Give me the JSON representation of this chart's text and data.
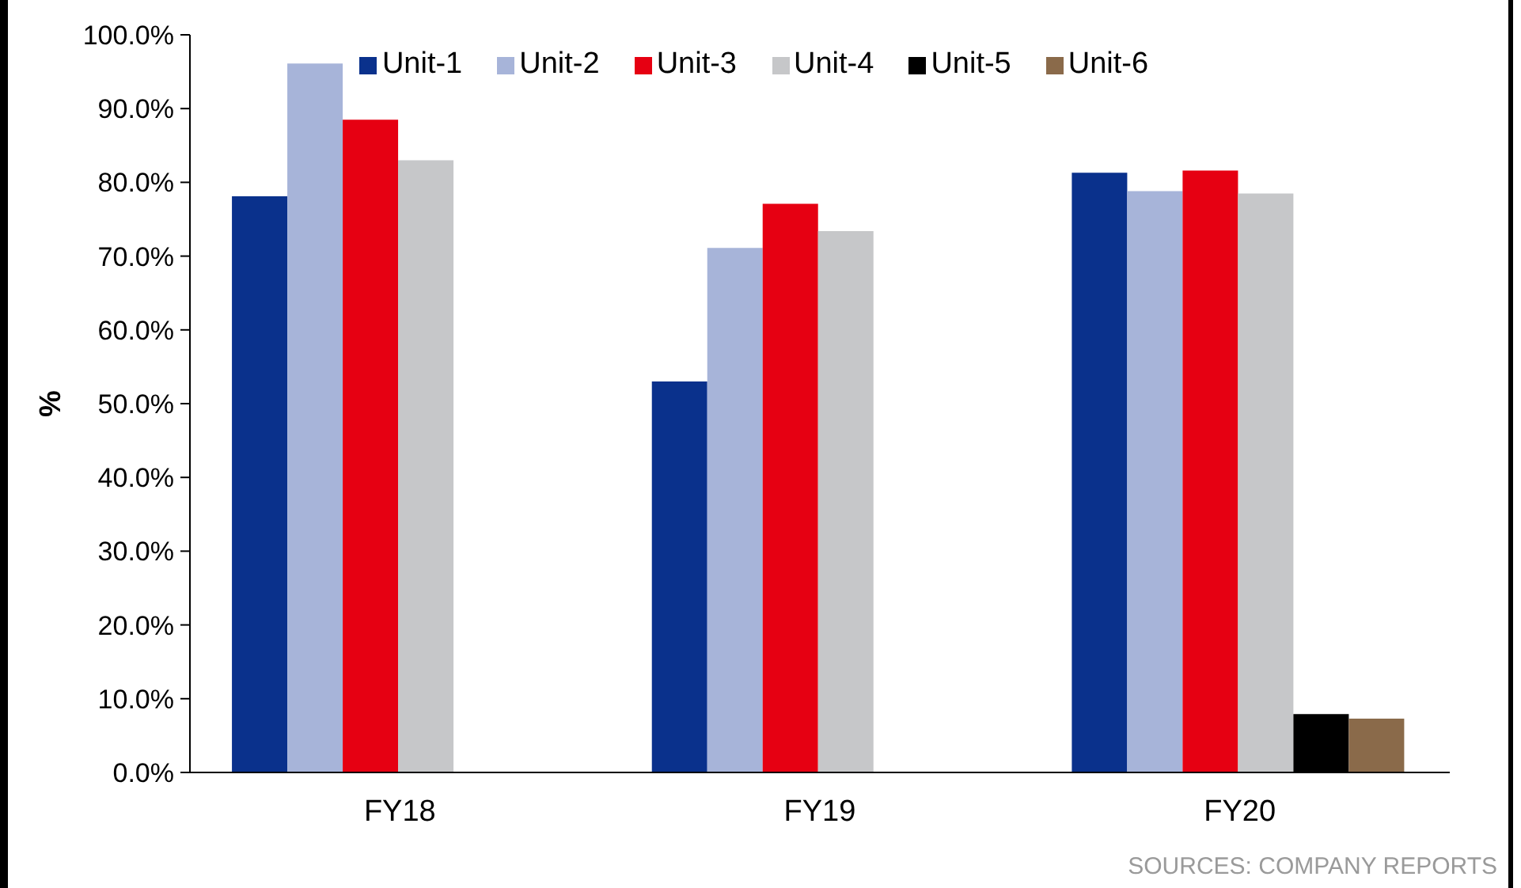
{
  "chart_data": {
    "type": "bar",
    "categories": [
      "FY18",
      "FY19",
      "FY20"
    ],
    "series": [
      {
        "name": "Unit-1",
        "color": "#0a318c",
        "values": [
          78.1,
          53.0,
          81.3
        ]
      },
      {
        "name": "Unit-2",
        "color": "#a7b4d9",
        "values": [
          96.1,
          71.1,
          78.8
        ]
      },
      {
        "name": "Unit-3",
        "color": "#e60012",
        "values": [
          88.5,
          77.1,
          81.6
        ]
      },
      {
        "name": "Unit-4",
        "color": "#c6c7c9",
        "values": [
          83.0,
          73.4,
          78.5
        ]
      },
      {
        "name": "Unit-5",
        "color": "#000000",
        "values": [
          null,
          null,
          7.9
        ]
      },
      {
        "name": "Unit-6",
        "color": "#8a6a4a",
        "values": [
          null,
          null,
          7.3
        ]
      }
    ],
    "ylabel": "%",
    "ylim": [
      0,
      100
    ],
    "yticks": [
      {
        "value": 0,
        "label": "0.0%"
      },
      {
        "value": 10,
        "label": "10.0%"
      },
      {
        "value": 20,
        "label": "20.0%"
      },
      {
        "value": 30,
        "label": "30.0%"
      },
      {
        "value": 40,
        "label": "40.0%"
      },
      {
        "value": 50,
        "label": "50.0%"
      },
      {
        "value": 60,
        "label": "60.0%"
      },
      {
        "value": 70,
        "label": "70.0%"
      },
      {
        "value": 80,
        "label": "80.0%"
      },
      {
        "value": 90,
        "label": "90.0%"
      },
      {
        "value": 100,
        "label": "100.0%"
      }
    ],
    "legend": "top",
    "annotations": [
      "SOURCES: COMPANY REPORTS"
    ]
  }
}
